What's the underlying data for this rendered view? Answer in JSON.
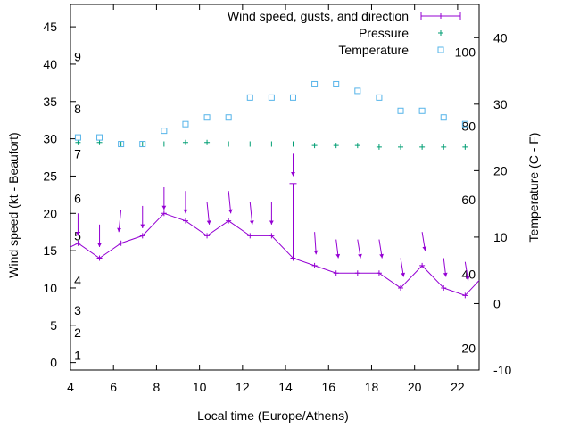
{
  "chart_data": {
    "type": "line",
    "xlabel": "Local time (Europe/Athens)",
    "ylabel": "Wind speed (kt - Beaufort)",
    "y2label": "Temperature (C - F)",
    "xlim": [
      4,
      23
    ],
    "ylim": [
      -1,
      48
    ],
    "y2lim": [
      -10,
      45
    ],
    "x_ticks": [
      4,
      6,
      8,
      10,
      12,
      14,
      16,
      18,
      20,
      22
    ],
    "y_ticks": [
      0,
      5,
      10,
      15,
      20,
      25,
      30,
      35,
      40,
      45
    ],
    "y2_ticks": [
      -10,
      0,
      10,
      20,
      30,
      40
    ],
    "beaufort_labels": [
      {
        "text": "1",
        "y": 1
      },
      {
        "text": "2",
        "y": 4
      },
      {
        "text": "3",
        "y": 7
      },
      {
        "text": "4",
        "y": 11
      },
      {
        "text": "5",
        "y": 17
      },
      {
        "text": "6",
        "y": 22
      },
      {
        "text": "7",
        "y": 28
      },
      {
        "text": "8",
        "y": 34
      },
      {
        "text": "9",
        "y": 41
      }
    ],
    "fahrenheit_labels": [
      {
        "text": "20",
        "y2": -6.7
      },
      {
        "text": "40",
        "y2": 4.4
      },
      {
        "text": "60",
        "y2": 15.6
      },
      {
        "text": "80",
        "y2": 26.7
      },
      {
        "text": "100",
        "y2": 37.8
      }
    ],
    "legend_position": "top-right",
    "series": [
      {
        "name": "Wind speed, gusts, and direction",
        "color": "#9400d3",
        "axis": "y",
        "x": [
          4,
          4.35,
          5.35,
          6.35,
          7.35,
          8.35,
          9.35,
          10.35,
          11.35,
          12.35,
          13.35,
          14.35,
          15.35,
          16.35,
          17.35,
          18.35,
          19.35,
          20.35,
          21.35,
          22.35,
          23
        ],
        "values": [
          15.5,
          16,
          14,
          16,
          17,
          20,
          19,
          17,
          19,
          17,
          17,
          14,
          13,
          12,
          12,
          12,
          10,
          13,
          10,
          9,
          11
        ],
        "gust": {
          "x": 14.35,
          "low": 14,
          "high": 24
        },
        "direction_arrows": [
          {
            "x": 4.35,
            "y": 20,
            "dx": 0,
            "dy": -3
          },
          {
            "x": 5.35,
            "y": 18.5,
            "dx": 0,
            "dy": -3
          },
          {
            "x": 6.35,
            "y": 20.5,
            "dx": -0.3,
            "dy": -3
          },
          {
            "x": 7.35,
            "y": 21,
            "dx": 0,
            "dy": -3
          },
          {
            "x": 8.35,
            "y": 23.5,
            "dx": 0,
            "dy": -3
          },
          {
            "x": 9.35,
            "y": 23,
            "dx": 0,
            "dy": -3
          },
          {
            "x": 10.35,
            "y": 21.5,
            "dx": 0.3,
            "dy": -3
          },
          {
            "x": 11.35,
            "y": 23,
            "dx": 0.3,
            "dy": -3
          },
          {
            "x": 12.35,
            "y": 21.5,
            "dx": 0.3,
            "dy": -3
          },
          {
            "x": 13.35,
            "y": 21.5,
            "dx": 0,
            "dy": -3
          },
          {
            "x": 14.35,
            "y": 28,
            "dx": 0,
            "dy": -3
          },
          {
            "x": 15.35,
            "y": 17.5,
            "dx": 0.2,
            "dy": -3
          },
          {
            "x": 16.35,
            "y": 16.5,
            "dx": 0.3,
            "dy": -2.5
          },
          {
            "x": 17.35,
            "y": 16.5,
            "dx": 0.4,
            "dy": -2.5
          },
          {
            "x": 18.35,
            "y": 16.5,
            "dx": 0.4,
            "dy": -2.5
          },
          {
            "x": 19.35,
            "y": 14,
            "dx": 0.4,
            "dy": -2.5
          },
          {
            "x": 20.35,
            "y": 17.5,
            "dx": 0.4,
            "dy": -2.5
          },
          {
            "x": 21.35,
            "y": 14,
            "dx": 0.3,
            "dy": -2.5
          },
          {
            "x": 22.35,
            "y": 13.5,
            "dx": 0.4,
            "dy": -2.5
          }
        ]
      },
      {
        "name": "Pressure",
        "color": "#009e73",
        "axis": "y",
        "x": [
          4.35,
          5.35,
          6.35,
          7.35,
          8.35,
          9.35,
          10.35,
          11.35,
          12.35,
          13.35,
          14.35,
          15.35,
          16.35,
          17.35,
          18.35,
          19.35,
          20.35,
          21.35,
          22.35
        ],
        "values": [
          29.5,
          29.5,
          29.3,
          29.3,
          29.3,
          29.5,
          29.5,
          29.3,
          29.3,
          29.3,
          29.3,
          29.1,
          29.1,
          29.1,
          28.9,
          28.9,
          28.9,
          28.9,
          28.9
        ]
      },
      {
        "name": "Temperature",
        "color": "#56b4e9",
        "axis": "y2",
        "x": [
          4.35,
          5.35,
          6.35,
          7.35,
          8.35,
          9.35,
          10.35,
          11.35,
          12.35,
          13.35,
          14.35,
          15.35,
          16.35,
          17.35,
          18.35,
          19.35,
          20.35,
          21.35,
          22.35
        ],
        "values": [
          25,
          25,
          24,
          24,
          26,
          27,
          28,
          28,
          31,
          31,
          31,
          33,
          33,
          32,
          31,
          29,
          29,
          28,
          27
        ]
      }
    ]
  }
}
